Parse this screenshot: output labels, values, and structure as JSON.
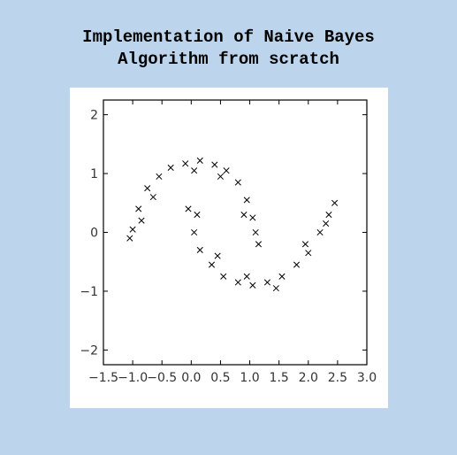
{
  "title_lines": [
    "Implementation of Naive Bayes",
    "Algorithm from scratch"
  ],
  "chart_data": {
    "type": "scatter",
    "marker": "x",
    "marker_color": "#000000",
    "grid": false,
    "xlim": [
      -1.5,
      3.0
    ],
    "ylim": [
      -2.25,
      2.25
    ],
    "x_ticks": [
      -1.5,
      -1.0,
      -0.5,
      0.0,
      0.5,
      1.0,
      1.5,
      2.0,
      2.5,
      3.0
    ],
    "x_tick_labels": [
      "−1.5",
      "−1.0",
      "−0.5",
      "0.0",
      "0.5",
      "1.0",
      "1.5",
      "2.0",
      "2.5",
      "3.0"
    ],
    "y_ticks": [
      -2,
      -1,
      0,
      1,
      2
    ],
    "y_tick_labels": [
      "−2",
      "−1",
      "0",
      "1",
      "2"
    ],
    "series": [
      {
        "shape": "upper moon",
        "points": [
          [
            -1.0,
            0.05
          ],
          [
            -0.9,
            0.4
          ],
          [
            -0.75,
            0.75
          ],
          [
            -0.55,
            0.95
          ],
          [
            -0.35,
            1.1
          ],
          [
            -0.1,
            1.17
          ],
          [
            0.15,
            1.22
          ],
          [
            0.4,
            1.15
          ],
          [
            0.6,
            1.05
          ],
          [
            0.8,
            0.85
          ],
          [
            0.95,
            0.55
          ],
          [
            1.05,
            0.25
          ],
          [
            1.1,
            0.0
          ],
          [
            1.15,
            -0.2
          ],
          [
            -1.05,
            -0.1
          ],
          [
            -0.85,
            0.2
          ],
          [
            -0.65,
            0.6
          ],
          [
            0.05,
            1.05
          ],
          [
            0.5,
            0.95
          ],
          [
            0.9,
            0.3
          ]
        ]
      },
      {
        "shape": "lower moon",
        "points": [
          [
            -0.05,
            0.4
          ],
          [
            0.05,
            0.0
          ],
          [
            0.15,
            -0.3
          ],
          [
            0.35,
            -0.55
          ],
          [
            0.55,
            -0.75
          ],
          [
            0.8,
            -0.85
          ],
          [
            1.05,
            -0.9
          ],
          [
            1.3,
            -0.85
          ],
          [
            1.55,
            -0.75
          ],
          [
            1.8,
            -0.55
          ],
          [
            2.0,
            -0.35
          ],
          [
            2.2,
            0.0
          ],
          [
            2.35,
            0.3
          ],
          [
            2.45,
            0.5
          ],
          [
            0.1,
            0.3
          ],
          [
            0.45,
            -0.4
          ],
          [
            0.95,
            -0.75
          ],
          [
            1.45,
            -0.95
          ],
          [
            1.95,
            -0.2
          ],
          [
            2.3,
            0.15
          ]
        ]
      }
    ]
  }
}
